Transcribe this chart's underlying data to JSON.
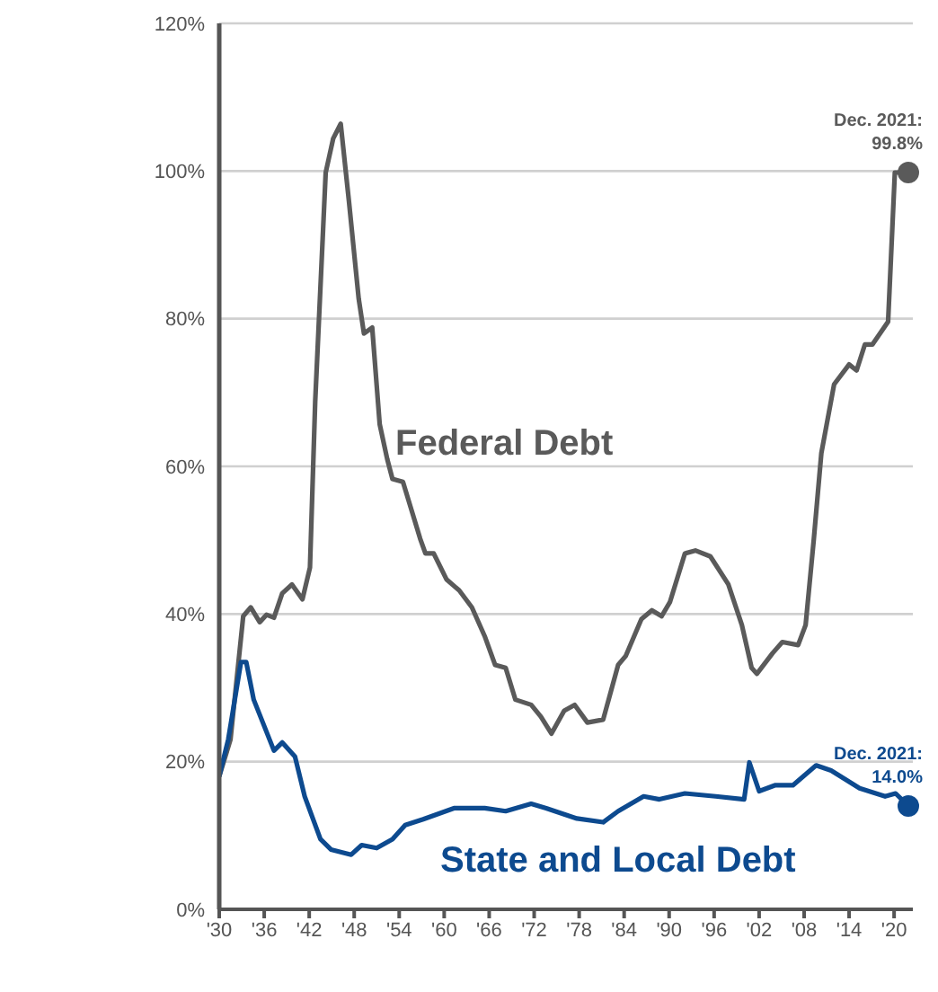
{
  "chart_data": {
    "type": "line",
    "grid": "y",
    "line_style": "solid",
    "marker": "none",
    "xlim": [
      1930,
      2022.5
    ],
    "xticks": [
      {
        "value": 1930,
        "label": "'30"
      },
      {
        "value": 1936,
        "label": "'36"
      },
      {
        "value": 1942,
        "label": "'42"
      },
      {
        "value": 1948,
        "label": "'48"
      },
      {
        "value": 1954,
        "label": "'54"
      },
      {
        "value": 1960,
        "label": "'60"
      },
      {
        "value": 1966,
        "label": "'66"
      },
      {
        "value": 1972,
        "label": "'72"
      },
      {
        "value": 1978,
        "label": "'78"
      },
      {
        "value": 1984,
        "label": "'84"
      },
      {
        "value": 1990,
        "label": "'90"
      },
      {
        "value": 1996,
        "label": "'96"
      },
      {
        "value": 2002,
        "label": "'02"
      },
      {
        "value": 2008,
        "label": "'08"
      },
      {
        "value": 2014,
        "label": "'14"
      },
      {
        "value": 2020,
        "label": "'20"
      }
    ],
    "ylim": [
      0,
      120
    ],
    "yticks": [
      {
        "value": 0,
        "label": "0%"
      },
      {
        "value": 20,
        "label": "20%"
      },
      {
        "value": 40,
        "label": "40%"
      },
      {
        "value": 60,
        "label": "60%"
      },
      {
        "value": 80,
        "label": "80%"
      },
      {
        "value": 100,
        "label": "100%"
      },
      {
        "value": 120,
        "label": "120%"
      }
    ],
    "series": [
      {
        "name": "Federal Debt",
        "color": "#5a5a5a",
        "x": [
          1930,
          1931.5,
          1933.2,
          1934.2,
          1935.4,
          1936.3,
          1937.3,
          1938.4,
          1939.7,
          1941.1,
          1942.1,
          1942.8,
          1944.2,
          1945.2,
          1946.2,
          1947.3,
          1948.6,
          1949.3,
          1950.4,
          1951.4,
          1952.4,
          1953.1,
          1954.5,
          1956.8,
          1957.5,
          1958.6,
          1960.3,
          1962,
          1963.7,
          1965.4,
          1966.8,
          1968.2,
          1969.5,
          1971.6,
          1972.9,
          1974.3,
          1976,
          1977.4,
          1979.1,
          1981.2,
          1983.2,
          1984.2,
          1986.3,
          1987.7,
          1989,
          1990.1,
          1992.1,
          1993.5,
          1995.5,
          1997.9,
          1999.7,
          2001,
          2001.7,
          2003.8,
          2005.1,
          2007.2,
          2008.2,
          2009.3,
          2010.3,
          2012,
          2014,
          2015,
          2016.1,
          2017.1,
          2019.2,
          2020.1,
          2021.9
        ],
        "values": [
          18,
          23,
          39.7,
          40.9,
          38.9,
          39.9,
          39.5,
          42.8,
          44,
          42,
          46.3,
          68.8,
          99.8,
          104.4,
          106.4,
          95.9,
          82.7,
          78,
          78.8,
          65.7,
          61,
          58.3,
          57.9,
          50.2,
          48.2,
          48.2,
          44.7,
          43.2,
          40.9,
          37,
          33.1,
          32.7,
          28.4,
          27.7,
          26.1,
          23.8,
          26.9,
          27.7,
          25.3,
          25.7,
          33.1,
          34.3,
          39.3,
          40.5,
          39.7,
          41.6,
          48.2,
          48.6,
          47.8,
          44,
          38.5,
          32.7,
          31.9,
          34.7,
          36.2,
          35.8,
          38.5,
          50.2,
          61.8,
          71.1,
          73.8,
          73,
          76.5,
          76.5,
          79.6,
          99.8,
          99.8
        ]
      },
      {
        "name": "State and Local Debt",
        "color": "#0d4a8f",
        "x": [
          1930,
          1931.2,
          1932.9,
          1933.6,
          1934.6,
          1937.3,
          1938.4,
          1940.1,
          1941.4,
          1943.5,
          1944.9,
          1947.6,
          1949,
          1951,
          1953.1,
          1954.8,
          1957.2,
          1961.3,
          1965.4,
          1968.2,
          1971.6,
          1973.6,
          1977.7,
          1981.2,
          1983.2,
          1986.6,
          1988.7,
          1992.1,
          1996.2,
          2000,
          2000.7,
          2002,
          2004.1,
          2006.5,
          2009.6,
          2011.6,
          2015.4,
          2018.8,
          2020.2,
          2021.9
        ],
        "values": [
          18,
          23,
          33.5,
          33.5,
          28.4,
          21.5,
          22.6,
          20.7,
          15.3,
          9.5,
          8.1,
          7.4,
          8.7,
          8.3,
          9.5,
          11.4,
          12.2,
          13.7,
          13.7,
          13.3,
          14.3,
          13.7,
          12.3,
          11.8,
          13.3,
          15.3,
          14.9,
          15.7,
          15.3,
          14.9,
          19.9,
          16,
          16.8,
          16.8,
          19.5,
          18.8,
          16.4,
          15.3,
          15.7,
          14.0
        ]
      }
    ],
    "annotations": [
      {
        "text": "Dec. 2021: 99.8%",
        "x": 2021.9,
        "y": 99.8
      },
      {
        "text": "Dec. 2021: 14.0%",
        "x": 2021.9,
        "y": 14.0
      }
    ]
  }
}
